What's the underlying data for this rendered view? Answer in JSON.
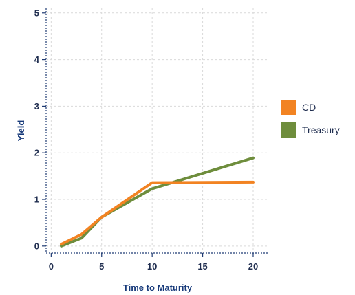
{
  "chart_data": {
    "type": "line",
    "title": "",
    "xlabel": "Time to Maturity",
    "ylabel": "Yield",
    "xlim": [
      -0.5,
      21.5
    ],
    "ylim": [
      -0.15,
      5.1
    ],
    "xticks": [
      0,
      5,
      10,
      15,
      20
    ],
    "yticks": [
      0,
      1,
      2,
      3,
      4,
      5
    ],
    "grid": true,
    "legend_position": "right",
    "series": [
      {
        "name": "CD",
        "color": "#f28322",
        "x": [
          1,
          3,
          5,
          10,
          20
        ],
        "y": [
          0.04,
          0.25,
          0.62,
          1.36,
          1.37
        ]
      },
      {
        "name": "Treasury",
        "color": "#6e8d3c",
        "x": [
          1,
          3,
          5,
          10,
          20
        ],
        "y": [
          0.0,
          0.17,
          0.62,
          1.23,
          1.89
        ]
      }
    ]
  }
}
